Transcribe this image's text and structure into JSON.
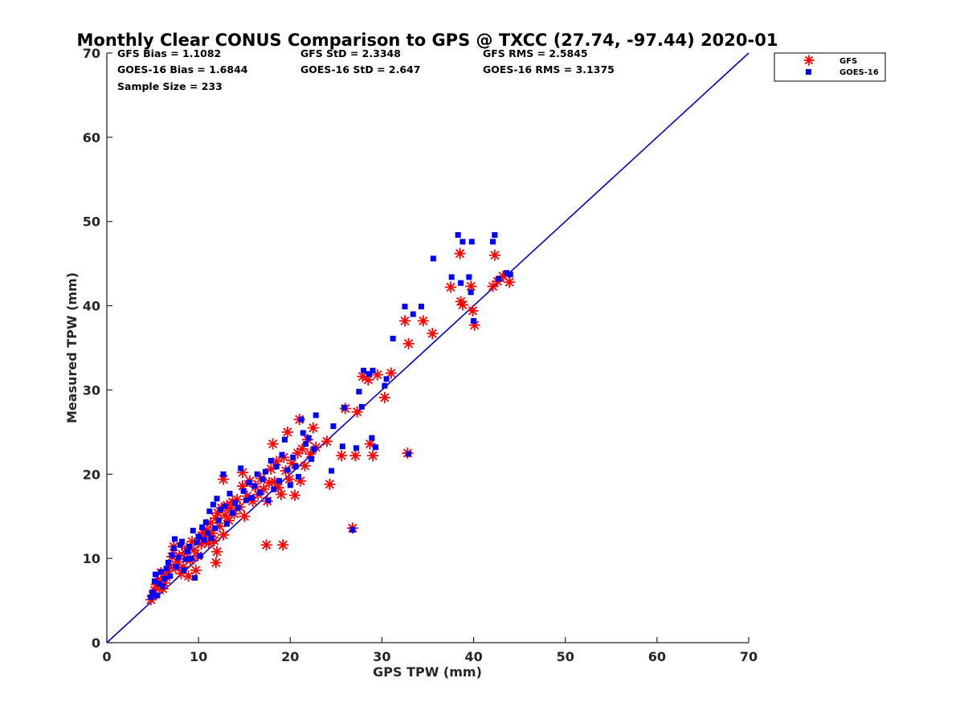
{
  "chart_data": {
    "type": "scatter",
    "title": "Monthly Clear CONUS Comparison to GPS @ TXCC (27.74, -97.44) 2020-01",
    "xlabel": "GPS TPW (mm)",
    "ylabel": "Measured TPW (mm)",
    "xlim": [
      0,
      70
    ],
    "ylim": [
      0,
      70
    ],
    "xticks": [
      "0",
      "10",
      "20",
      "30",
      "40",
      "50",
      "60",
      "70"
    ],
    "yticks": [
      "0",
      "10",
      "20",
      "30",
      "40",
      "50",
      "60",
      "70"
    ],
    "grid": false,
    "legend_position": "top-right",
    "stats": {
      "gfs_bias": "GFS Bias = 1.1082",
      "goes_bias": "GOES-16 Bias = 1.6844",
      "sample_size": "Sample Size = 233",
      "gfs_std": "GFS StD = 2.3348",
      "goes_std": "GOES-16 StD = 2.647",
      "gfs_rms": "GFS RMS = 2.5845",
      "goes_rms": "GOES-16 RMS = 3.1375"
    },
    "reference_line": {
      "x": [
        0,
        70
      ],
      "y": [
        0,
        70
      ],
      "color": "#0000d0"
    },
    "series": [
      {
        "name": "GFS",
        "marker": "asterisk",
        "color": "#ff0000",
        "points": [
          [
            4.8,
            5.1
          ],
          [
            5.0,
            5.6
          ],
          [
            5.2,
            6.2
          ],
          [
            5.4,
            6.9
          ],
          [
            5.6,
            7.5
          ],
          [
            5.9,
            8.3
          ],
          [
            6.1,
            6.4
          ],
          [
            6.3,
            7.1
          ],
          [
            6.5,
            7.8
          ],
          [
            6.7,
            8.5
          ],
          [
            6.9,
            9.0
          ],
          [
            7.1,
            10.2
          ],
          [
            7.3,
            11.4
          ],
          [
            7.5,
            8.9
          ],
          [
            7.7,
            9.6
          ],
          [
            7.9,
            10.3
          ],
          [
            8.1,
            8.2
          ],
          [
            8.3,
            9.0
          ],
          [
            8.5,
            10.7
          ],
          [
            8.7,
            11.2
          ],
          [
            8.9,
            7.9
          ],
          [
            9.1,
            9.8
          ],
          [
            9.3,
            12.0
          ],
          [
            9.5,
            11.0
          ],
          [
            9.7,
            8.6
          ],
          [
            9.9,
            10.3
          ],
          [
            10.1,
            12.4
          ],
          [
            10.3,
            11.7
          ],
          [
            10.5,
            13.1
          ],
          [
            10.7,
            12.5
          ],
          [
            10.9,
            13.4
          ],
          [
            11.1,
            11.8
          ],
          [
            11.3,
            14.2
          ],
          [
            11.5,
            13.0
          ],
          [
            11.7,
            12.1
          ],
          [
            11.9,
            14.8
          ],
          [
            11.9,
            9.5
          ],
          [
            12.0,
            10.8
          ],
          [
            12.1,
            15.4
          ],
          [
            12.3,
            13.8
          ],
          [
            12.5,
            16.0
          ],
          [
            12.7,
            12.8
          ],
          [
            12.7,
            19.4
          ],
          [
            12.9,
            15.1
          ],
          [
            13.1,
            16.3
          ],
          [
            13.3,
            14.5
          ],
          [
            13.5,
            15.9
          ],
          [
            13.7,
            16.7
          ],
          [
            13.9,
            15.3
          ],
          [
            14.2,
            17.0
          ],
          [
            14.5,
            16.1
          ],
          [
            14.8,
            18.6
          ],
          [
            14.8,
            20.2
          ],
          [
            15.0,
            15.0
          ],
          [
            15.3,
            17.4
          ],
          [
            15.6,
            19.2
          ],
          [
            15.9,
            16.8
          ],
          [
            16.2,
            18.5
          ],
          [
            16.5,
            17.6
          ],
          [
            16.8,
            19.5
          ],
          [
            17.1,
            18.2
          ],
          [
            17.4,
            11.6
          ],
          [
            17.5,
            16.8
          ],
          [
            17.7,
            19.0
          ],
          [
            17.9,
            20.6
          ],
          [
            18.1,
            23.6
          ],
          [
            18.3,
            19.1
          ],
          [
            18.5,
            21.5
          ],
          [
            18.7,
            18.4
          ],
          [
            19.0,
            17.6
          ],
          [
            19.2,
            11.6
          ],
          [
            19.3,
            22.0
          ],
          [
            19.5,
            20.4
          ],
          [
            19.7,
            25.0
          ],
          [
            19.9,
            19.4
          ],
          [
            20.2,
            21.3
          ],
          [
            20.5,
            17.5
          ],
          [
            20.8,
            22.5
          ],
          [
            21.0,
            26.5
          ],
          [
            21.1,
            19.2
          ],
          [
            21.3,
            23.0
          ],
          [
            21.6,
            21.0
          ],
          [
            21.9,
            24.1
          ],
          [
            22.2,
            22.4
          ],
          [
            22.5,
            25.5
          ],
          [
            22.8,
            23.2
          ],
          [
            24.0,
            23.9
          ],
          [
            24.3,
            18.8
          ],
          [
            25.6,
            22.2
          ],
          [
            26.0,
            27.8
          ],
          [
            26.8,
            13.6
          ],
          [
            27.1,
            22.2
          ],
          [
            27.3,
            27.4
          ],
          [
            27.9,
            31.6
          ],
          [
            28.5,
            31.2
          ],
          [
            28.7,
            23.6
          ],
          [
            29.0,
            22.2
          ],
          [
            29.5,
            31.8
          ],
          [
            30.3,
            29.1
          ],
          [
            31.0,
            32.0
          ],
          [
            32.8,
            22.5
          ],
          [
            32.5,
            38.2
          ],
          [
            32.9,
            35.5
          ],
          [
            34.5,
            38.2
          ],
          [
            35.5,
            36.7
          ],
          [
            37.5,
            42.2
          ],
          [
            38.5,
            46.2
          ],
          [
            38.6,
            40.5
          ],
          [
            38.8,
            40.1
          ],
          [
            39.7,
            42.3
          ],
          [
            39.9,
            39.4
          ],
          [
            40.1,
            37.7
          ],
          [
            42.1,
            42.3
          ],
          [
            42.3,
            46.0
          ],
          [
            42.6,
            42.9
          ],
          [
            43.2,
            43.5
          ],
          [
            43.9,
            42.8
          ]
        ]
      },
      {
        "name": "GOES-16",
        "marker": "square",
        "color": "#0000ff",
        "points": [
          [
            4.8,
            5.4
          ],
          [
            5.0,
            6.0
          ],
          [
            5.2,
            7.3
          ],
          [
            5.3,
            8.1
          ],
          [
            5.5,
            5.6
          ],
          [
            5.7,
            7.0
          ],
          [
            5.9,
            8.4
          ],
          [
            6.1,
            6.7
          ],
          [
            6.3,
            7.6
          ],
          [
            6.5,
            8.8
          ],
          [
            6.7,
            9.5
          ],
          [
            6.9,
            7.9
          ],
          [
            7.1,
            10.4
          ],
          [
            7.3,
            11.2
          ],
          [
            7.4,
            12.3
          ],
          [
            7.6,
            9.0
          ],
          [
            7.8,
            10.1
          ],
          [
            8.0,
            11.6
          ],
          [
            8.2,
            12.0
          ],
          [
            8.4,
            8.6
          ],
          [
            8.6,
            9.9
          ],
          [
            8.8,
            10.8
          ],
          [
            9.0,
            11.4
          ],
          [
            9.2,
            10.0
          ],
          [
            9.4,
            13.3
          ],
          [
            9.6,
            7.7
          ],
          [
            9.8,
            11.9
          ],
          [
            10.0,
            12.6
          ],
          [
            10.2,
            10.3
          ],
          [
            10.4,
            13.7
          ],
          [
            10.6,
            12.2
          ],
          [
            10.8,
            14.3
          ],
          [
            11.0,
            13.0
          ],
          [
            11.2,
            15.6
          ],
          [
            11.4,
            12.4
          ],
          [
            11.6,
            16.4
          ],
          [
            11.8,
            13.6
          ],
          [
            12.0,
            17.1
          ],
          [
            12.2,
            14.5
          ],
          [
            12.4,
            15.8
          ],
          [
            12.7,
            20.0
          ],
          [
            12.9,
            16.2
          ],
          [
            13.1,
            14.1
          ],
          [
            13.4,
            17.7
          ],
          [
            13.7,
            15.4
          ],
          [
            14.0,
            16.6
          ],
          [
            14.3,
            16.0
          ],
          [
            14.6,
            20.7
          ],
          [
            14.9,
            18.0
          ],
          [
            15.2,
            16.9
          ],
          [
            15.5,
            19.0
          ],
          [
            15.8,
            17.2
          ],
          [
            16.1,
            18.6
          ],
          [
            16.4,
            20.0
          ],
          [
            16.7,
            17.8
          ],
          [
            17.0,
            19.4
          ],
          [
            17.3,
            20.3
          ],
          [
            17.6,
            16.9
          ],
          [
            17.9,
            21.6
          ],
          [
            18.2,
            18.2
          ],
          [
            18.5,
            20.9
          ],
          [
            18.8,
            19.2
          ],
          [
            19.1,
            22.3
          ],
          [
            19.4,
            24.1
          ],
          [
            19.7,
            20.5
          ],
          [
            20.0,
            18.7
          ],
          [
            20.3,
            22.0
          ],
          [
            20.6,
            20.9
          ],
          [
            20.9,
            19.7
          ],
          [
            21.2,
            26.5
          ],
          [
            21.4,
            24.9
          ],
          [
            21.7,
            23.6
          ],
          [
            22.0,
            24.3
          ],
          [
            22.3,
            21.8
          ],
          [
            22.6,
            23.0
          ],
          [
            22.8,
            27.0
          ],
          [
            24.5,
            20.4
          ],
          [
            24.7,
            25.7
          ],
          [
            25.7,
            23.3
          ],
          [
            25.9,
            27.9
          ],
          [
            26.8,
            13.4
          ],
          [
            27.2,
            23.1
          ],
          [
            27.5,
            29.8
          ],
          [
            27.8,
            28.0
          ],
          [
            28.0,
            32.3
          ],
          [
            28.6,
            31.9
          ],
          [
            28.9,
            24.3
          ],
          [
            29.0,
            32.3
          ],
          [
            29.3,
            23.2
          ],
          [
            30.3,
            30.5
          ],
          [
            30.5,
            31.3
          ],
          [
            31.2,
            36.1
          ],
          [
            32.5,
            39.9
          ],
          [
            32.9,
            22.4
          ],
          [
            33.4,
            39.0
          ],
          [
            34.3,
            39.9
          ],
          [
            35.6,
            45.6
          ],
          [
            37.6,
            43.4
          ],
          [
            38.3,
            48.4
          ],
          [
            38.6,
            42.7
          ],
          [
            38.8,
            47.6
          ],
          [
            39.5,
            43.4
          ],
          [
            39.7,
            41.6
          ],
          [
            39.8,
            47.6
          ],
          [
            40.0,
            38.2
          ],
          [
            42.1,
            47.6
          ],
          [
            42.3,
            48.4
          ],
          [
            42.7,
            43.2
          ],
          [
            43.6,
            43.9
          ],
          [
            44.0,
            43.7
          ]
        ]
      }
    ]
  }
}
